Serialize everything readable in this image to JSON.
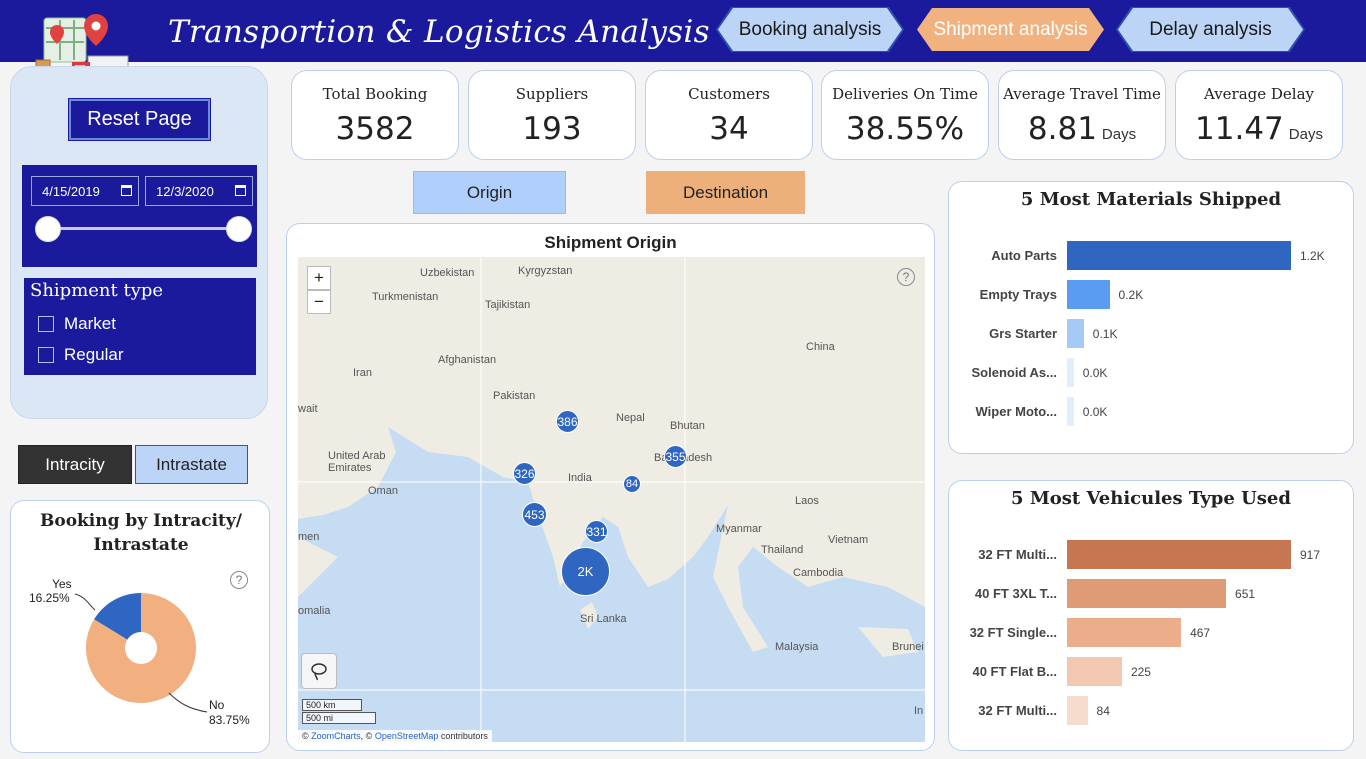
{
  "header": {
    "title": "Transportion & Logistics Analysis",
    "nav": [
      {
        "label": "Booking analysis"
      },
      {
        "label": "Shipment analysis"
      },
      {
        "label": "Delay analysis"
      }
    ]
  },
  "filters": {
    "reset_label": "Reset Page",
    "date_start": "4/15/2019",
    "date_end": "12/3/2020",
    "shipment_type_title": "Shipment type",
    "shipment_types": [
      "Market",
      "Regular"
    ]
  },
  "toggles": {
    "intracity": "Intracity",
    "intrastate": "Intrastate"
  },
  "kpis": [
    {
      "label": "Total Booking",
      "value": "3582",
      "unit": ""
    },
    {
      "label": "Suppliers",
      "value": "193",
      "unit": ""
    },
    {
      "label": "Customers",
      "value": "34",
      "unit": ""
    },
    {
      "label": "Deliveries On Time",
      "value": "38.55%",
      "unit": ""
    },
    {
      "label": "Average Travel Time",
      "value": "8.81",
      "unit": "Days"
    },
    {
      "label": "Average Delay",
      "value": "11.47",
      "unit": "Days"
    }
  ],
  "map_toggle": {
    "origin": "Origin",
    "destination": "Destination"
  },
  "map": {
    "title": "Shipment Origin",
    "zoom_in": "+",
    "zoom_out": "−",
    "help": "?",
    "scale_km": "500 km",
    "scale_mi": "500 mi",
    "attribution_prefix": "©",
    "attribution_zc": "ZoomCharts",
    "attribution_mid": ", ©",
    "attribution_osm": "OpenStreetMap",
    "attribution_suffix": "contributors",
    "place_labels": [
      "Uzbekistan",
      "Kyrgyzstan",
      "Turkmenistan",
      "Tajikistan",
      "China",
      "Afghanistan",
      "Iran",
      "Pakistan",
      "Nepal",
      "Bhutan",
      "United Arab\nEmirates",
      "India",
      "Bangladesh",
      "Oman",
      "Laos",
      "Myanmar",
      "Vietnam",
      "Thailand",
      "Cambodia",
      "Sri Lanka",
      "Malaysia",
      "Brunei",
      "omalia",
      "men",
      "wait",
      "In"
    ],
    "clusters": [
      {
        "label": "386"
      },
      {
        "label": "355"
      },
      {
        "label": "326"
      },
      {
        "label": "84"
      },
      {
        "label": "453"
      },
      {
        "label": "331"
      },
      {
        "label": "2K"
      }
    ]
  },
  "donut": {
    "title_line1": "Booking by Intracity/",
    "title_line2": "Intrastate",
    "help": "?",
    "yes_label": "Yes",
    "yes_value": "16.25%",
    "no_label": "No",
    "no_value": "83.75%",
    "colors": {
      "yes": "#2e66c2",
      "no": "#f2b080"
    }
  },
  "materials": {
    "title": "5 Most Materials Shipped",
    "items": [
      {
        "label": "Auto Parts",
        "value_text": "1.2K",
        "fraction": 1.0,
        "color": "#2e66c2"
      },
      {
        "label": "Empty Trays",
        "value_text": "0.2K",
        "fraction": 0.19,
        "color": "#5b9cf3"
      },
      {
        "label": "Grs Starter",
        "value_text": "0.1K",
        "fraction": 0.075,
        "color": "#a6c9f6"
      },
      {
        "label": "Solenoid As...",
        "value_text": "0.0K",
        "fraction": 0.03,
        "color": "#e3eefb"
      },
      {
        "label": "Wiper Moto...",
        "value_text": "0.0K",
        "fraction": 0.03,
        "color": "#e3eefb"
      }
    ]
  },
  "vehicles": {
    "title": "5 Most Vehicules Type Used",
    "items": [
      {
        "label": "32 FT Multi...",
        "value_text": "917",
        "value": 917,
        "color": "#c67650"
      },
      {
        "label": "40 FT 3XL T...",
        "value_text": "651",
        "value": 651,
        "color": "#df9a76"
      },
      {
        "label": "32 FT Single...",
        "value_text": "467",
        "value": 467,
        "color": "#ecad8a"
      },
      {
        "label": "40 FT Flat B...",
        "value_text": "225",
        "value": 225,
        "color": "#f2c8b0"
      },
      {
        "label": "32 FT Multi...",
        "value_text": "84",
        "value": 84,
        "color": "#f6dccc"
      }
    ]
  }
}
